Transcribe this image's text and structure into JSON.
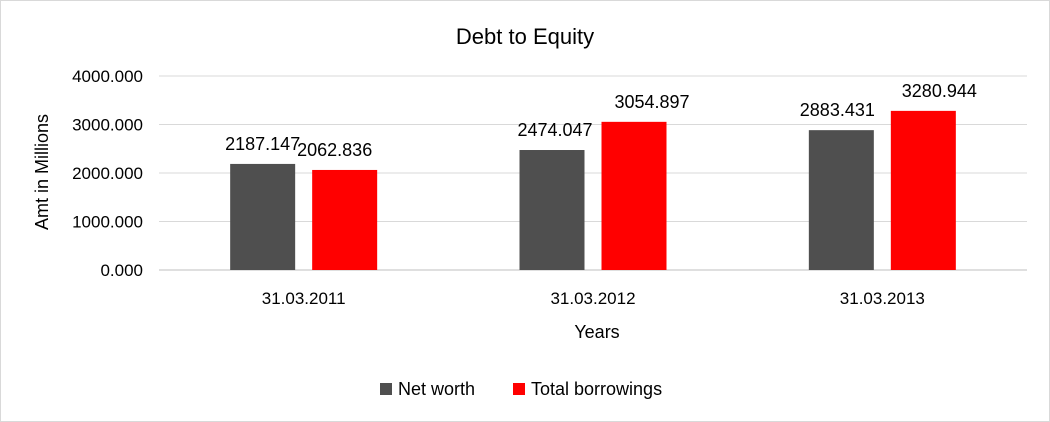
{
  "chart_data": {
    "type": "bar",
    "title": "Debt to Equity",
    "xlabel": "Years",
    "ylabel": "Amt in Millions",
    "categories": [
      "31.03.2011",
      "31.03.2012",
      "31.03.2013"
    ],
    "series": [
      {
        "name": "Net worth",
        "color": "#4f4f4f",
        "values": [
          2187.147,
          2474.047,
          2883.431
        ],
        "labels": [
          "2187.147",
          "2474.047",
          "2883.431"
        ]
      },
      {
        "name": "Total borrowings",
        "color": "#ff0000",
        "values": [
          2062.836,
          3054.897,
          3280.944
        ],
        "labels": [
          "2062.836",
          "3054.897",
          "3280.944"
        ]
      }
    ],
    "ylim": [
      0,
      4000
    ],
    "yticks": [
      "0.000",
      "1000.000",
      "2000.000",
      "3000.000",
      "4000.000"
    ],
    "grid": true,
    "legend_position": "bottom"
  }
}
